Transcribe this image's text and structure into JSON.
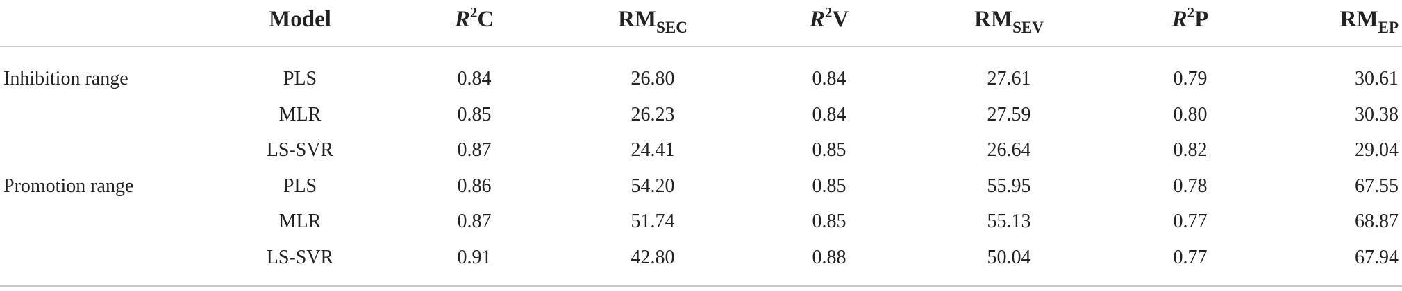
{
  "header": {
    "model": "Model",
    "r2c": {
      "r": "R",
      "sup": "2",
      "rest": "C"
    },
    "rmsec": {
      "base": "RM",
      "sub": "SEC"
    },
    "r2v": {
      "r": "R",
      "sup": "2",
      "rest": "V"
    },
    "rmsev": {
      "base": "RM",
      "sub": "SEV"
    },
    "r2p": {
      "r": "R",
      "sup": "2",
      "rest": "P"
    },
    "rmep": {
      "base": "RM",
      "sub": "EP"
    }
  },
  "rows": [
    {
      "group": "Inhibition range",
      "model": "PLS",
      "r2c": "0.84",
      "rmsec": "26.80",
      "r2v": "0.84",
      "rmsev": "27.61",
      "r2p": "0.79",
      "rmep": "30.61"
    },
    {
      "group": "",
      "model": "MLR",
      "r2c": "0.85",
      "rmsec": "26.23",
      "r2v": "0.84",
      "rmsev": "27.59",
      "r2p": "0.80",
      "rmep": "30.38"
    },
    {
      "group": "",
      "model": "LS-SVR",
      "r2c": "0.87",
      "rmsec": "24.41",
      "r2v": "0.85",
      "rmsev": "26.64",
      "r2p": "0.82",
      "rmep": "29.04"
    },
    {
      "group": "Promotion range",
      "model": "PLS",
      "r2c": "0.86",
      "rmsec": "54.20",
      "r2v": "0.85",
      "rmsev": "55.95",
      "r2p": "0.78",
      "rmep": "67.55"
    },
    {
      "group": "",
      "model": "MLR",
      "r2c": "0.87",
      "rmsec": "51.74",
      "r2v": "0.85",
      "rmsev": "55.13",
      "r2p": "0.77",
      "rmep": "68.87"
    },
    {
      "group": "",
      "model": "LS-SVR",
      "r2c": "0.91",
      "rmsec": "42.80",
      "r2v": "0.88",
      "rmsev": "50.04",
      "r2p": "0.77",
      "rmep": "67.94"
    }
  ]
}
